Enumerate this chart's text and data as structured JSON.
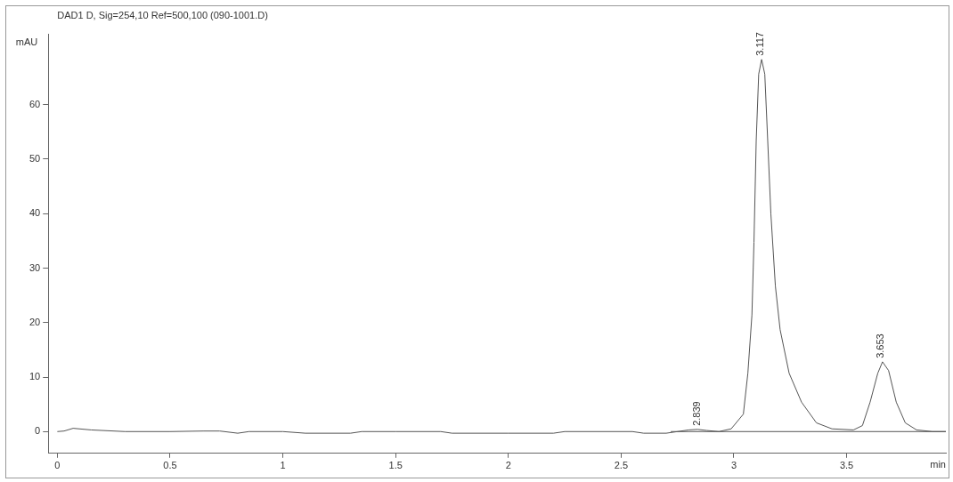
{
  "chart_data": {
    "type": "line",
    "title": "DAD1 D, Sig=254,10 Ref=500,100 (090-1001.D)",
    "xlabel": "min",
    "ylabel": "mAU",
    "xlim": [
      -0.04,
      3.94
    ],
    "ylim": [
      -4,
      73
    ],
    "xticks": [
      0,
      0.5,
      1,
      1.5,
      2,
      2.5,
      3,
      3.5
    ],
    "yticks": [
      0,
      10,
      20,
      30,
      40,
      50,
      60
    ],
    "grid": false,
    "legend": false,
    "marker": "none",
    "line_style": "solid",
    "series": [
      {
        "color": "#555555",
        "x": [
          0,
          0.03,
          0.07,
          0.15,
          0.3,
          0.5,
          0.65,
          0.72,
          0.8,
          0.85,
          1,
          1.1,
          1.3,
          1.35,
          1.5,
          1.7,
          1.75,
          2,
          2.2,
          2.25,
          2.55,
          2.6,
          2.7,
          2.75,
          2.8,
          2.839,
          2.88,
          2.934,
          2.988,
          3.042,
          3.062,
          3.08,
          3.089,
          3.099,
          3.11,
          3.123,
          3.137,
          3.15,
          3.164,
          3.184,
          3.205,
          3.245,
          3.3,
          3.366,
          3.435,
          3.53,
          3.57,
          3.604,
          3.638,
          3.659,
          3.686,
          3.72,
          3.76,
          3.81,
          3.88,
          3.94
        ],
        "values": [
          0,
          0.1,
          0.6,
          0.3,
          0,
          0,
          0.1,
          0.1,
          -0.3,
          0,
          0,
          -0.3,
          -0.3,
          0,
          0,
          0,
          -0.3,
          -0.3,
          -0.3,
          0,
          0,
          -0.3,
          -0.3,
          0,
          0.3,
          0.4,
          0.2,
          0,
          0.5,
          3.2,
          10.7,
          21.4,
          34.7,
          53.4,
          65.6,
          68.3,
          65.6,
          53.4,
          40,
          26.7,
          18.7,
          10.7,
          5.4,
          1.6,
          0.5,
          0.3,
          1.1,
          5.4,
          10.7,
          12.8,
          11.2,
          5.4,
          1.6,
          0.3,
          0,
          0
        ]
      },
      {
        "color": "#555555",
        "x": [
          2.72,
          3.94
        ],
        "values": [
          0,
          0
        ]
      }
    ],
    "annotations": [
      {
        "text": "2.839",
        "x": 2.839,
        "y": 0.4
      },
      {
        "text": "3.117",
        "x": 3.117,
        "y": 68.3
      },
      {
        "text": "3.653",
        "x": 3.653,
        "y": 12.8
      }
    ]
  }
}
